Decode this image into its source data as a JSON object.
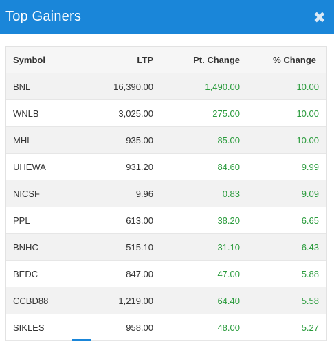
{
  "header": {
    "title": "Top Gainers",
    "close_symbol": "✖"
  },
  "table": {
    "columns": [
      "Symbol",
      "LTP",
      "Pt. Change",
      "% Change"
    ],
    "rows": [
      {
        "symbol": "BNL",
        "ltp": "16,390.00",
        "pt_change": "1,490.00",
        "pct_change": "10.00"
      },
      {
        "symbol": "WNLB",
        "ltp": "3,025.00",
        "pt_change": "275.00",
        "pct_change": "10.00"
      },
      {
        "symbol": "MHL",
        "ltp": "935.00",
        "pt_change": "85.00",
        "pct_change": "10.00"
      },
      {
        "symbol": "UHEWA",
        "ltp": "931.20",
        "pt_change": "84.60",
        "pct_change": "9.99"
      },
      {
        "symbol": "NICSF",
        "ltp": "9.96",
        "pt_change": "0.83",
        "pct_change": "9.09"
      },
      {
        "symbol": "PPL",
        "ltp": "613.00",
        "pt_change": "38.20",
        "pct_change": "6.65"
      },
      {
        "symbol": "BNHC",
        "ltp": "515.10",
        "pt_change": "31.10",
        "pct_change": "6.43"
      },
      {
        "symbol": "BEDC",
        "ltp": "847.00",
        "pt_change": "47.00",
        "pct_change": "5.88"
      },
      {
        "symbol": "CCBD88",
        "ltp": "1,219.00",
        "pt_change": "64.40",
        "pct_change": "5.58"
      },
      {
        "symbol": "SIKLES",
        "ltp": "958.00",
        "pt_change": "48.00",
        "pct_change": "5.27"
      }
    ]
  },
  "colors": {
    "header_bg": "#1a86d9",
    "gain_green": "#2a9b3c"
  }
}
